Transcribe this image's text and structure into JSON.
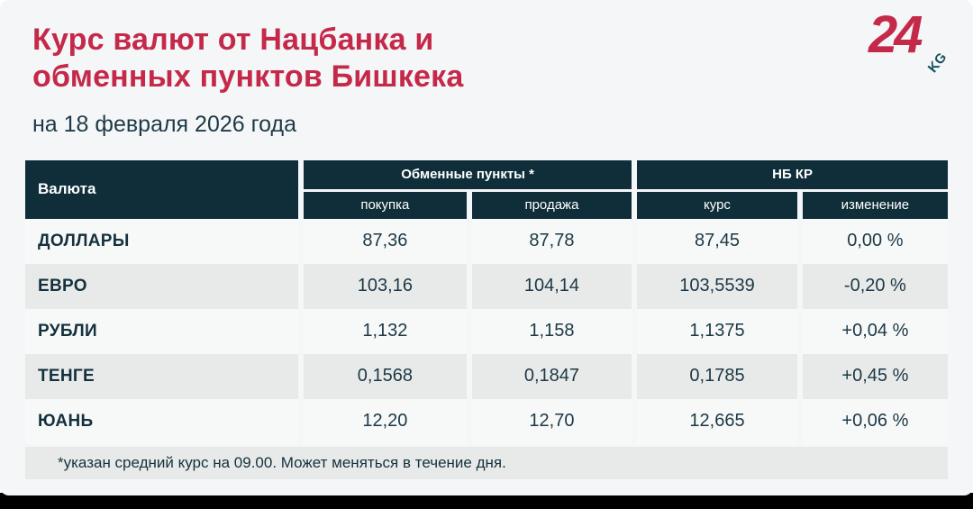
{
  "page": {
    "title_line1": "Курс валют от Нацбанка и",
    "title_line2": "обменных пунктов Бишкека",
    "subtitle": "на 18 февраля 2026 года",
    "footnote": "*указан средний курс на 09.00. Может меняться в течение дня."
  },
  "logo": {
    "number": "24",
    "suffix": "KG"
  },
  "colors": {
    "accent_red": "#c5294a",
    "header_dark": "#0f2e3a",
    "text_dark": "#1c3845",
    "row_light": "#f7f9f9",
    "row_gray": "#e8eae9",
    "page_bg": "#f4f6f7",
    "bottom_bar": "#000000"
  },
  "table": {
    "corner_header": "Валюта",
    "groups": [
      {
        "label": "Обменные пункты *",
        "columns": [
          "покупка",
          "продажа"
        ]
      },
      {
        "label": "НБ КР",
        "columns": [
          "курс",
          "изменение"
        ]
      }
    ],
    "rows": [
      {
        "currency": "ДОЛЛАРЫ",
        "buy": "87,36",
        "sell": "87,78",
        "rate": "87,45",
        "change": "0,00 %"
      },
      {
        "currency": "ЕВРО",
        "buy": "103,16",
        "sell": "104,14",
        "rate": "103,5539",
        "change": "-0,20 %"
      },
      {
        "currency": "РУБЛИ",
        "buy": "1,132",
        "sell": "1,158",
        "rate": "1,1375",
        "change": "+0,04 %"
      },
      {
        "currency": "ТЕНГЕ",
        "buy": "0,1568",
        "sell": "0,1847",
        "rate": "0,1785",
        "change": "+0,45 %"
      },
      {
        "currency": "ЮАНЬ",
        "buy": "12,20",
        "sell": "12,70",
        "rate": "12,665",
        "change": "+0,06 %"
      }
    ]
  },
  "chart_data": {
    "type": "table",
    "title": "Курс валют от Нацбанка и обменных пунктов Бишкека",
    "subtitle": "на 18 февраля 2026 года",
    "column_groups": [
      "Обменные пункты *",
      "НБ КР"
    ],
    "columns": [
      "Валюта",
      "покупка",
      "продажа",
      "курс",
      "изменение"
    ],
    "rows": [
      [
        "ДОЛЛАРЫ",
        "87,36",
        "87,78",
        "87,45",
        "0,00 %"
      ],
      [
        "ЕВРО",
        "103,16",
        "104,14",
        "103,5539",
        "-0,20 %"
      ],
      [
        "РУБЛИ",
        "1,132",
        "1,158",
        "1,1375",
        "+0,04 %"
      ],
      [
        "ТЕНГЕ",
        "0,1568",
        "0,1847",
        "0,1785",
        "+0,45 %"
      ],
      [
        "ЮАНЬ",
        "12,20",
        "12,70",
        "12,665",
        "+0,06 %"
      ]
    ],
    "footnote": "*указан средний курс на 09.00. Может меняться в течение дня."
  }
}
